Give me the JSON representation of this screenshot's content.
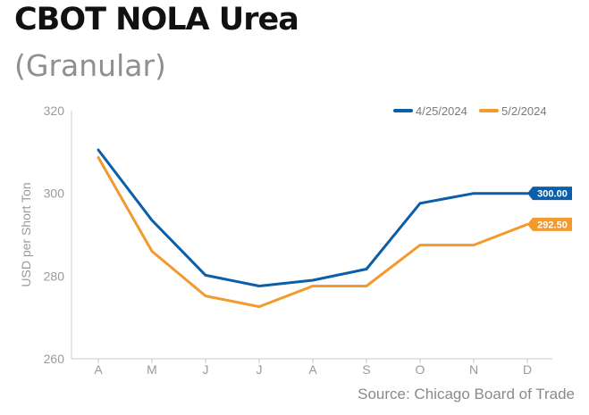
{
  "title": "CBOT NOLA Urea",
  "subtitle": "(Granular)",
  "source": "Source: Chicago Board of Trade",
  "chart_data": {
    "type": "line",
    "title": "CBOT NOLA Urea",
    "subtitle": "(Granular)",
    "ylabel": "USD per Short Ton",
    "xlabel": "",
    "categories": [
      "A",
      "M",
      "J",
      "J",
      "A",
      "S",
      "O",
      "N",
      "D"
    ],
    "ylim": [
      260,
      320
    ],
    "yticks": [
      260,
      280,
      300,
      320
    ],
    "grid": false,
    "legend_position": "top-right",
    "series": [
      {
        "name": "4/25/2024",
        "color": "#0b5ea8",
        "values": [
          310.5,
          293.5,
          280.2,
          277.6,
          279.0,
          281.7,
          297.6,
          300.0,
          300.0
        ],
        "end_label": "300.00"
      },
      {
        "name": "5/2/2024",
        "color": "#f29a2e",
        "values": [
          308.7,
          286.0,
          275.2,
          272.6,
          277.6,
          277.6,
          287.5,
          287.5,
          292.5
        ],
        "end_label": "292.50"
      }
    ]
  }
}
